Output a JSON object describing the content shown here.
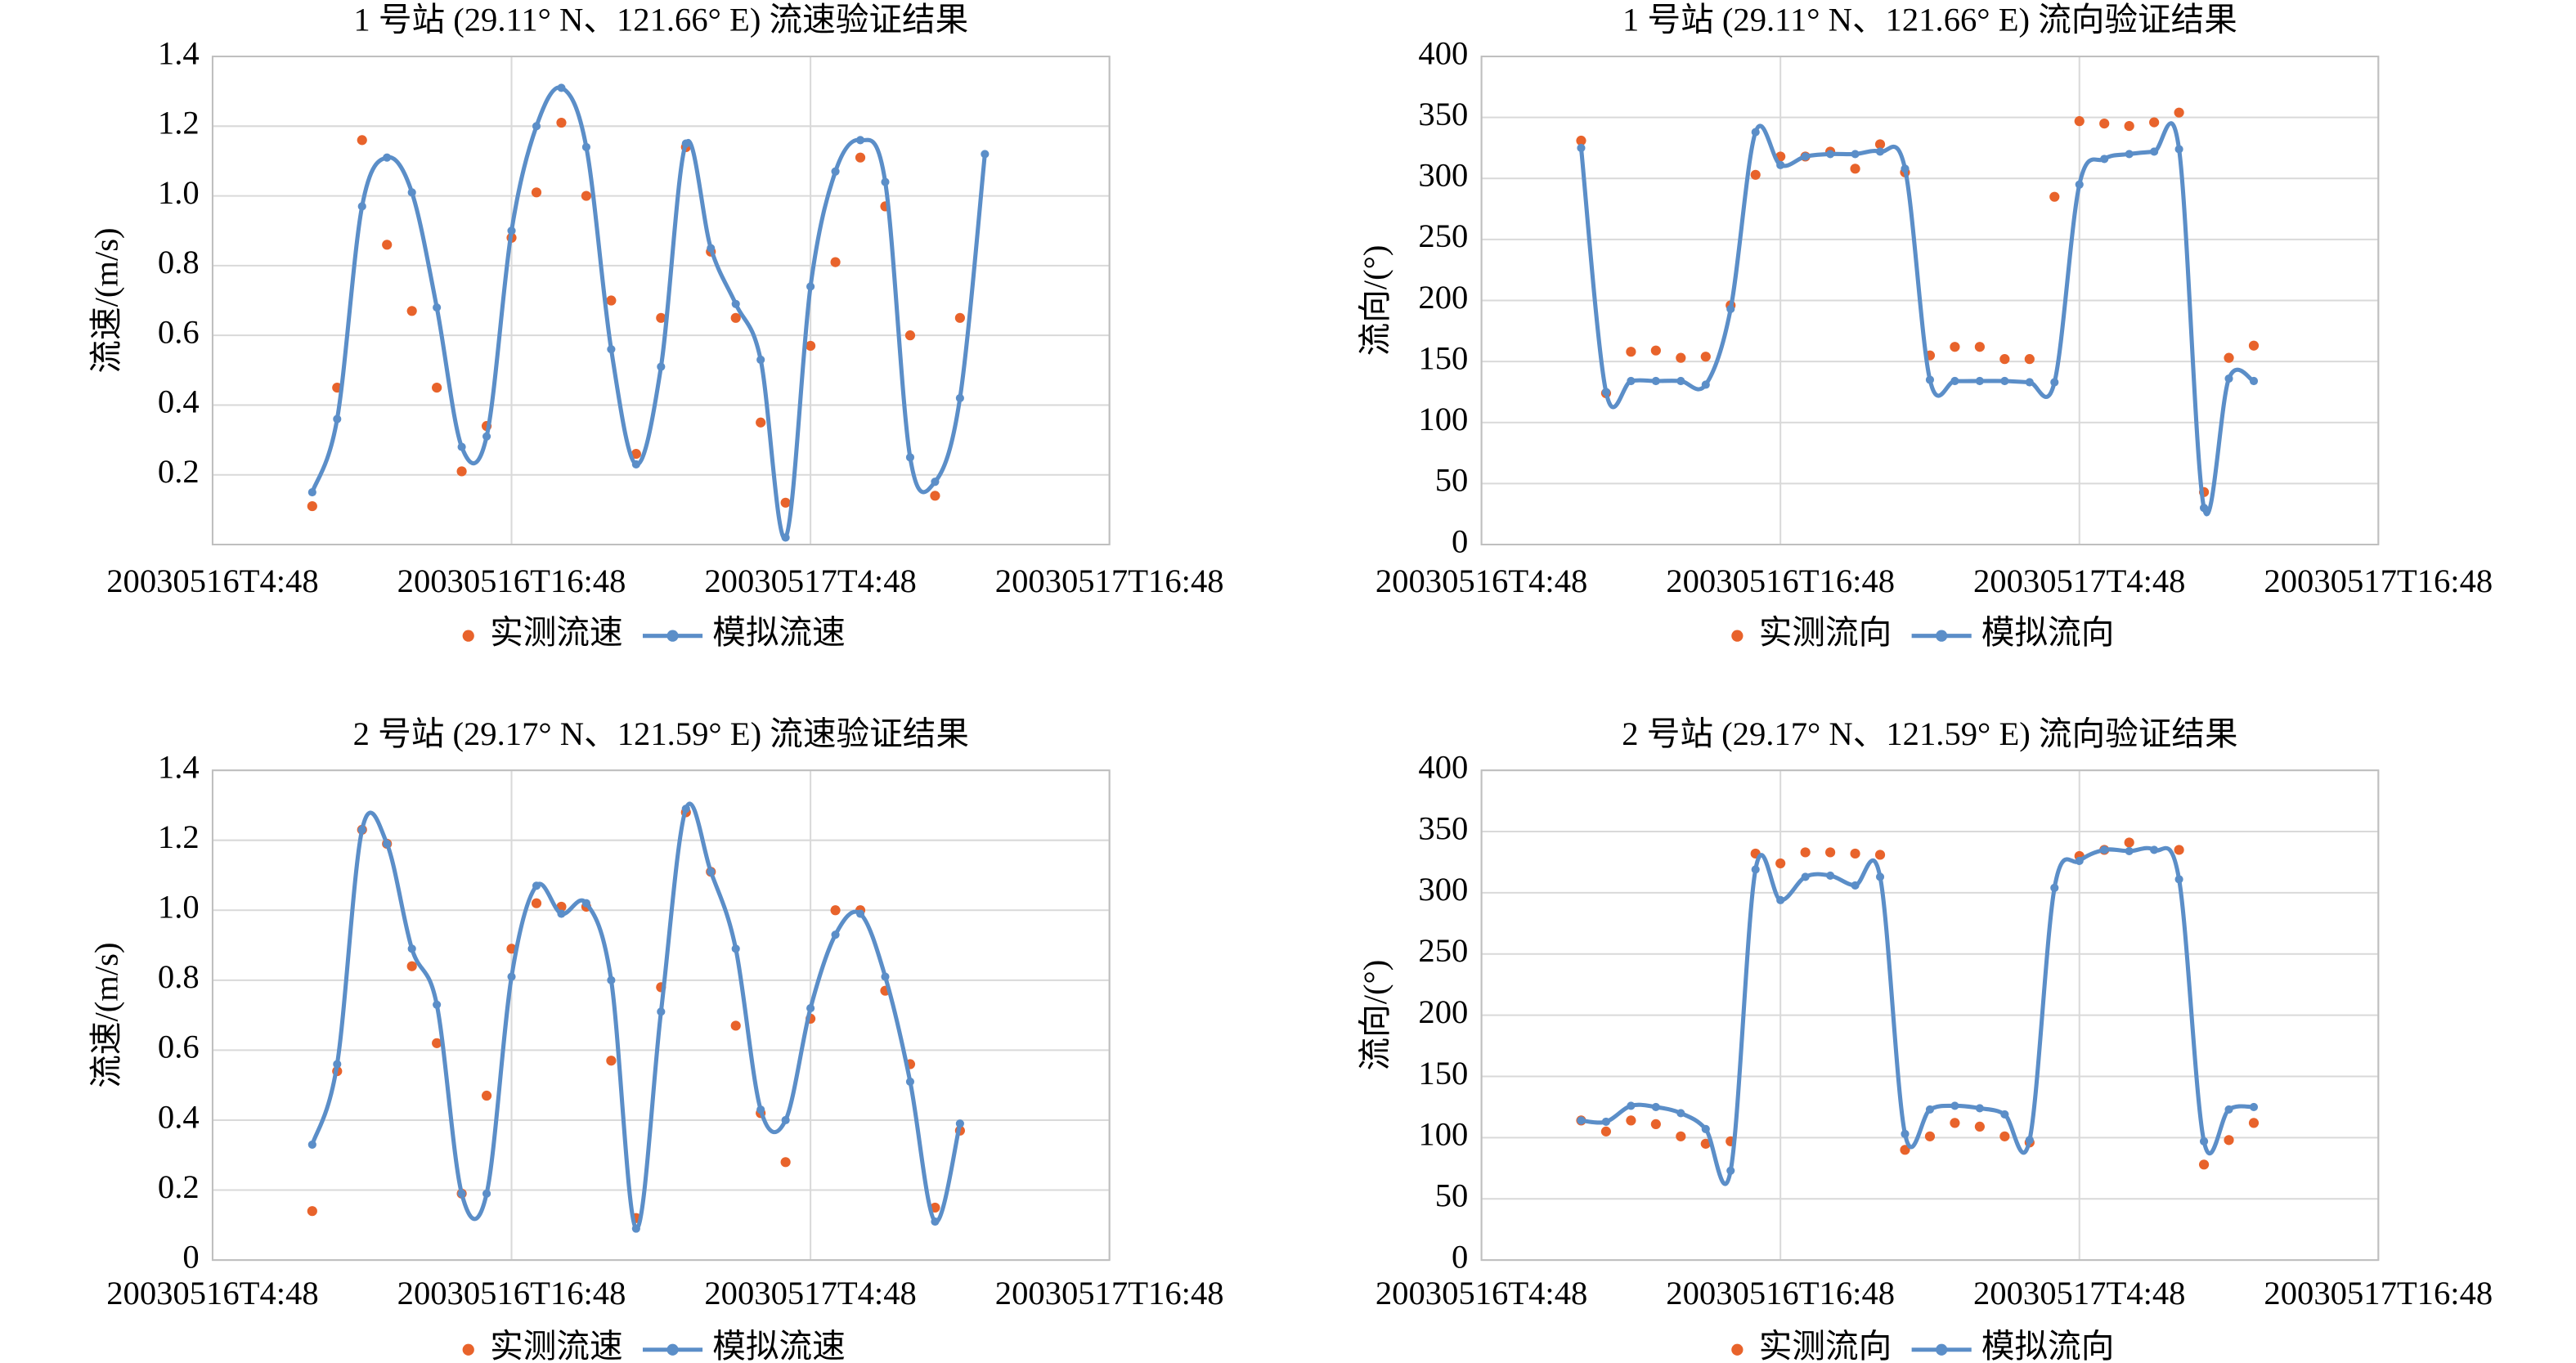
{
  "chart_data": [
    {
      "type": "line",
      "title": "1 号站 (29.11° N、121.66° E) 流速验证结果",
      "y_label": "流速/(m/s)",
      "xlim": [
        0,
        36
      ],
      "xticks": [
        {
          "value": 0,
          "label": "20030516T4:48"
        },
        {
          "value": 12,
          "label": "20030516T16:48"
        },
        {
          "value": 24,
          "label": "20030517T4:48"
        },
        {
          "value": 36,
          "label": "20030517T16:48"
        }
      ],
      "ylim": [
        0,
        1.4
      ],
      "yticks": [
        0.2,
        0.4,
        0.6,
        0.8,
        {
          "value": 1,
          "label": "1.0"
        },
        1.2,
        1.4
      ],
      "grid": true,
      "legend": "bottom",
      "series": [
        {
          "name": "实测流速",
          "style": "scatter",
          "color": "#e8632b",
          "x": [
            4,
            5,
            6,
            7,
            8,
            9,
            10,
            11,
            12,
            13,
            14,
            15,
            16,
            17,
            18,
            19,
            20,
            21,
            22,
            23,
            24,
            25,
            26,
            27,
            28,
            29,
            30
          ],
          "values": [
            0.11,
            0.45,
            1.16,
            0.86,
            0.67,
            0.45,
            0.21,
            0.34,
            0.88,
            1.01,
            1.21,
            1.0,
            0.7,
            0.26,
            0.65,
            1.14,
            0.84,
            0.65,
            0.35,
            0.12,
            0.57,
            0.81,
            1.11,
            0.97,
            0.6,
            0.14,
            0.65
          ]
        },
        {
          "name": "模拟流速",
          "style": "line",
          "color": "#5b8ec8",
          "x": [
            4,
            5,
            6,
            7,
            8,
            9,
            10,
            11,
            12,
            13,
            14,
            15,
            16,
            17,
            18,
            19,
            20,
            21,
            22,
            23,
            24,
            25,
            26,
            27,
            28,
            29,
            30,
            31
          ],
          "values": [
            0.15,
            0.36,
            0.97,
            1.11,
            1.01,
            0.68,
            0.28,
            0.31,
            0.9,
            1.2,
            1.31,
            1.14,
            0.56,
            0.23,
            0.51,
            1.15,
            0.85,
            0.69,
            0.53,
            0.02,
            0.74,
            1.07,
            1.16,
            1.04,
            0.25,
            0.18,
            0.42,
            1.12
          ]
        }
      ]
    },
    {
      "type": "line",
      "title": "1 号站 (29.11° N、121.66° E) 流向验证结果",
      "y_label": "流向/(°)",
      "xlim": [
        0,
        36
      ],
      "xticks": [
        {
          "value": 0,
          "label": "20030516T4:48"
        },
        {
          "value": 12,
          "label": "20030516T16:48"
        },
        {
          "value": 24,
          "label": "20030517T4:48"
        },
        {
          "value": 36,
          "label": "20030517T16:48"
        }
      ],
      "ylim": [
        0,
        400
      ],
      "yticks": [
        0,
        50,
        100,
        150,
        200,
        250,
        300,
        350,
        400
      ],
      "grid": true,
      "legend": "bottom",
      "series": [
        {
          "name": "实测流向",
          "style": "scatter",
          "color": "#e8632b",
          "x": [
            4,
            5,
            6,
            7,
            8,
            9,
            10,
            11,
            12,
            13,
            14,
            15,
            16,
            17,
            18,
            19,
            20,
            21,
            22,
            23,
            24,
            25,
            26,
            27,
            28,
            29,
            30,
            31
          ],
          "values": [
            331,
            124,
            158,
            159,
            153,
            154,
            196,
            303,
            318,
            318,
            322,
            308,
            328,
            305,
            155,
            162,
            162,
            152,
            152,
            285,
            347,
            345,
            343,
            346,
            354,
            43,
            153,
            163
          ]
        },
        {
          "name": "模拟流向",
          "style": "line",
          "color": "#5b8ec8",
          "x": [
            4,
            5,
            6,
            7,
            8,
            9,
            10,
            11,
            12,
            13,
            14,
            15,
            16,
            17,
            18,
            19,
            20,
            21,
            22,
            23,
            24,
            25,
            26,
            27,
            28,
            29,
            30,
            31
          ],
          "values": [
            325,
            125,
            134,
            134,
            134,
            131,
            193,
            338,
            311,
            318,
            320,
            320,
            322,
            308,
            135,
            134,
            134,
            134,
            133,
            133,
            295,
            316,
            320,
            322,
            324,
            30,
            136,
            134
          ]
        }
      ]
    },
    {
      "type": "line",
      "title": "2 号站 (29.17° N、121.59° E) 流速验证结果",
      "y_label": "流速/(m/s)",
      "xlim": [
        0,
        36
      ],
      "xticks": [
        {
          "value": 0,
          "label": "20030516T4:48"
        },
        {
          "value": 12,
          "label": "20030516T16:48"
        },
        {
          "value": 24,
          "label": "20030517T4:48"
        },
        {
          "value": 36,
          "label": "20030517T16:48"
        }
      ],
      "ylim": [
        0,
        1.4
      ],
      "yticks": [
        0,
        0.2,
        0.4,
        0.6,
        0.8,
        {
          "value": 1,
          "label": "1.0"
        },
        1.2,
        1.4
      ],
      "grid": true,
      "legend": "bottom",
      "series": [
        {
          "name": "实测流速",
          "style": "scatter",
          "color": "#e8632b",
          "x": [
            4,
            5,
            6,
            7,
            8,
            9,
            10,
            11,
            12,
            13,
            14,
            15,
            16,
            17,
            18,
            19,
            20,
            21,
            22,
            23,
            24,
            25,
            26,
            27,
            28,
            29,
            30
          ],
          "values": [
            0.14,
            0.54,
            1.23,
            1.19,
            0.84,
            0.62,
            0.19,
            0.47,
            0.89,
            1.02,
            1.01,
            1.01,
            0.57,
            0.12,
            0.78,
            1.28,
            1.11,
            0.67,
            0.42,
            0.28,
            0.69,
            1.0,
            1.0,
            0.77,
            0.56,
            0.15,
            0.37
          ]
        },
        {
          "name": "模拟流速",
          "style": "line",
          "color": "#5b8ec8",
          "x": [
            4,
            5,
            6,
            7,
            8,
            9,
            10,
            11,
            12,
            13,
            14,
            15,
            16,
            17,
            18,
            19,
            20,
            21,
            22,
            23,
            24,
            25,
            26,
            27,
            28,
            29,
            30
          ],
          "values": [
            0.33,
            0.56,
            1.23,
            1.19,
            0.89,
            0.73,
            0.19,
            0.19,
            0.81,
            1.07,
            0.99,
            1.02,
            0.8,
            0.09,
            0.71,
            1.29,
            1.11,
            0.89,
            0.43,
            0.4,
            0.72,
            0.93,
            0.99,
            0.81,
            0.51,
            0.11,
            0.39
          ]
        }
      ]
    },
    {
      "type": "line",
      "title": "2 号站 (29.17° N、121.59° E) 流向验证结果",
      "y_label": "流向/(°)",
      "xlim": [
        0,
        36
      ],
      "xticks": [
        {
          "value": 0,
          "label": "20030516T4:48"
        },
        {
          "value": 12,
          "label": "20030516T16:48"
        },
        {
          "value": 24,
          "label": "20030517T4:48"
        },
        {
          "value": 36,
          "label": "20030517T16:48"
        }
      ],
      "ylim": [
        0,
        400
      ],
      "yticks": [
        0,
        50,
        100,
        150,
        200,
        250,
        300,
        350,
        400
      ],
      "grid": true,
      "legend": "bottom",
      "series": [
        {
          "name": "实测流向",
          "style": "scatter",
          "color": "#e8632b",
          "x": [
            4,
            5,
            6,
            7,
            8,
            9,
            10,
            11,
            12,
            13,
            14,
            15,
            16,
            17,
            18,
            19,
            20,
            21,
            22,
            24,
            25,
            26,
            28,
            29,
            30,
            31
          ],
          "values": [
            114,
            105,
            114,
            111,
            101,
            95,
            97,
            332,
            324,
            333,
            333,
            332,
            331,
            90,
            101,
            112,
            109,
            101,
            96,
            330,
            335,
            341,
            335,
            78,
            98,
            112
          ]
        },
        {
          "name": "模拟流向",
          "style": "line",
          "color": "#5b8ec8",
          "x": [
            4,
            5,
            6,
            7,
            8,
            9,
            10,
            11,
            12,
            13,
            14,
            15,
            16,
            17,
            18,
            19,
            20,
            21,
            22,
            23,
            24,
            25,
            26,
            27,
            28,
            29,
            30,
            31
          ],
          "values": [
            114,
            113,
            126,
            125,
            120,
            107,
            73,
            319,
            294,
            313,
            314,
            306,
            313,
            103,
            123,
            126,
            124,
            119,
            98,
            304,
            326,
            335,
            334,
            335,
            311,
            97,
            123,
            125
          ]
        }
      ]
    }
  ]
}
